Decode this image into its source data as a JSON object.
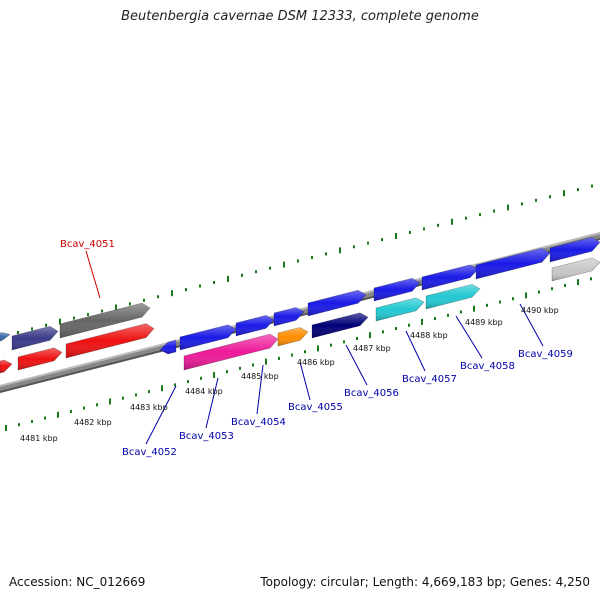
{
  "title": "Beutenbergia cavernae DSM 12333, complete genome",
  "footer": {
    "accession": "Accession: NC_012669",
    "summary": "Topology: circular; Length: 4,669,183 bp; Genes: 4,250"
  },
  "scale_labels": [
    "4481 kbp",
    "4482 kbp",
    "4483 kbp",
    "4484 kbp",
    "4485 kbp",
    "4486 kbp",
    "4487 kbp",
    "4488 kbp",
    "4489 kbp",
    "4490 kbp"
  ],
  "genes": [
    {
      "id": "Bcav_4051",
      "color": "#666666",
      "label_color": "#cc0000"
    },
    {
      "id": "Bcav_4052",
      "color": "#1a1ae6",
      "label_color": "#0000aa"
    },
    {
      "id": "Bcav_4053",
      "color": "#1a1ae6",
      "label_color": "#0000aa"
    },
    {
      "id": "Bcav_4054",
      "color": "#1a1ae6",
      "label_color": "#0000aa"
    },
    {
      "id": "Bcav_4055",
      "color": "#1a1ae6",
      "label_color": "#0000aa"
    },
    {
      "id": "Bcav_4056",
      "color": "#000077",
      "label_color": "#0000aa"
    },
    {
      "id": "Bcav_4057",
      "color": "#22c8d2",
      "label_color": "#0000aa"
    },
    {
      "id": "Bcav_4058",
      "color": "#22c8d2",
      "label_color": "#0000aa"
    },
    {
      "id": "Bcav_4059",
      "color": "#1a1ae6",
      "label_color": "#0000aa"
    }
  ]
}
